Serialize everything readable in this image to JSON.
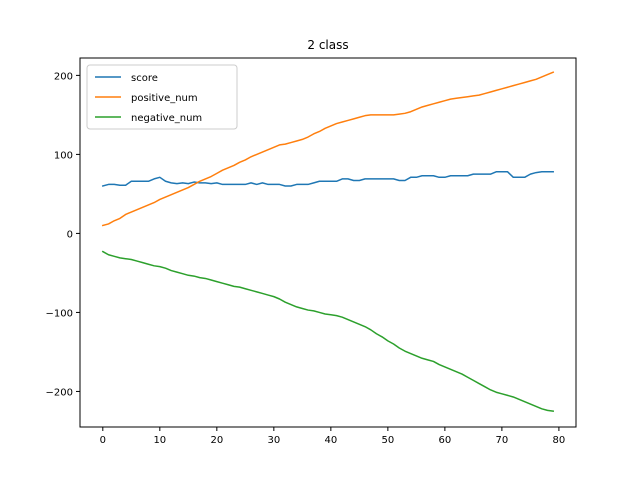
{
  "chart_data": {
    "type": "line",
    "title": "2 class",
    "xlabel": "",
    "ylabel": "",
    "xlim": [
      -4,
      83
    ],
    "ylim": [
      -245,
      222
    ],
    "xticks": [
      0,
      10,
      20,
      30,
      40,
      50,
      60,
      70,
      80
    ],
    "yticks": [
      -200,
      -100,
      0,
      100,
      200
    ],
    "ytick_labels": [
      "−200",
      "−100",
      "0",
      "100",
      "200"
    ],
    "grid": false,
    "legend_position": "top-left",
    "series": [
      {
        "name": "score",
        "color": "#1f77b4",
        "x": [
          0,
          1,
          2,
          3,
          4,
          5,
          6,
          7,
          8,
          9,
          10,
          11,
          12,
          13,
          14,
          15,
          16,
          17,
          18,
          19,
          20,
          21,
          22,
          23,
          24,
          25,
          26,
          27,
          28,
          29,
          30,
          31,
          32,
          33,
          34,
          35,
          36,
          37,
          38,
          39,
          40,
          41,
          42,
          43,
          44,
          45,
          46,
          47,
          48,
          49,
          50,
          51,
          52,
          53,
          54,
          55,
          56,
          57,
          58,
          59,
          60,
          61,
          62,
          63,
          64,
          65,
          66,
          67,
          68,
          69,
          70,
          71,
          72,
          73,
          74,
          75,
          76,
          77,
          78,
          79
        ],
        "values": [
          60,
          62,
          62,
          61,
          61,
          66,
          66,
          66,
          66,
          69,
          71,
          66,
          64,
          63,
          64,
          63,
          65,
          64,
          64,
          63,
          64,
          62,
          62,
          62,
          62,
          62,
          64,
          62,
          64,
          62,
          62,
          62,
          60,
          60,
          62,
          62,
          62,
          64,
          66,
          66,
          66,
          66,
          69,
          69,
          67,
          67,
          69,
          69,
          69,
          69,
          69,
          69,
          67,
          67,
          71,
          71,
          73,
          73,
          73,
          71,
          71,
          73,
          73,
          73,
          73,
          75,
          75,
          75,
          75,
          78,
          78,
          78,
          71,
          71,
          71,
          75,
          77,
          78,
          78,
          78
        ]
      },
      {
        "name": "positive_num",
        "color": "#ff7f0e",
        "x": [
          0,
          1,
          2,
          3,
          4,
          5,
          6,
          7,
          8,
          9,
          10,
          11,
          12,
          13,
          14,
          15,
          16,
          17,
          18,
          19,
          20,
          21,
          22,
          23,
          24,
          25,
          26,
          27,
          28,
          29,
          30,
          31,
          32,
          33,
          34,
          35,
          36,
          37,
          38,
          39,
          40,
          41,
          42,
          43,
          44,
          45,
          46,
          47,
          48,
          49,
          50,
          51,
          52,
          53,
          54,
          55,
          56,
          57,
          58,
          59,
          60,
          61,
          62,
          63,
          64,
          65,
          66,
          67,
          68,
          69,
          70,
          71,
          72,
          73,
          74,
          75,
          76,
          77,
          78,
          79
        ],
        "values": [
          10,
          12,
          16,
          19,
          24,
          27,
          30,
          33,
          36,
          39,
          43,
          46,
          49,
          52,
          55,
          58,
          62,
          66,
          69,
          72,
          76,
          80,
          83,
          86,
          90,
          93,
          97,
          100,
          103,
          106,
          109,
          112,
          113,
          115,
          117,
          119,
          122,
          126,
          129,
          133,
          136,
          139,
          141,
          143,
          145,
          147,
          149,
          150,
          150,
          150,
          150,
          150,
          151,
          152,
          154,
          157,
          160,
          162,
          164,
          166,
          168,
          170,
          171,
          172,
          173,
          174,
          175,
          177,
          179,
          181,
          183,
          185,
          187,
          189,
          191,
          193,
          195,
          198,
          201,
          204
        ]
      },
      {
        "name": "negative_num",
        "color": "#2ca02c",
        "x": [
          0,
          1,
          2,
          3,
          4,
          5,
          6,
          7,
          8,
          9,
          10,
          11,
          12,
          13,
          14,
          15,
          16,
          17,
          18,
          19,
          20,
          21,
          22,
          23,
          24,
          25,
          26,
          27,
          28,
          29,
          30,
          31,
          32,
          33,
          34,
          35,
          36,
          37,
          38,
          39,
          40,
          41,
          42,
          43,
          44,
          45,
          46,
          47,
          48,
          49,
          50,
          51,
          52,
          53,
          54,
          55,
          56,
          57,
          58,
          59,
          60,
          61,
          62,
          63,
          64,
          65,
          66,
          67,
          68,
          69,
          70,
          71,
          72,
          73,
          74,
          75,
          76,
          77,
          78,
          79
        ],
        "values": [
          -23,
          -27,
          -29,
          -31,
          -32,
          -33,
          -35,
          -37,
          -39,
          -41,
          -42,
          -44,
          -47,
          -49,
          -51,
          -53,
          -54,
          -56,
          -57,
          -59,
          -61,
          -63,
          -65,
          -67,
          -68,
          -70,
          -72,
          -74,
          -76,
          -78,
          -80,
          -83,
          -87,
          -90,
          -93,
          -95,
          -97,
          -98,
          -100,
          -102,
          -103,
          -104,
          -106,
          -109,
          -112,
          -115,
          -118,
          -122,
          -127,
          -131,
          -136,
          -140,
          -145,
          -149,
          -152,
          -155,
          -158,
          -160,
          -162,
          -166,
          -169,
          -172,
          -175,
          -178,
          -182,
          -186,
          -190,
          -194,
          -198,
          -201,
          -203,
          -205,
          -207,
          -210,
          -213,
          -216,
          -219,
          -222,
          -224,
          -225
        ]
      }
    ]
  }
}
